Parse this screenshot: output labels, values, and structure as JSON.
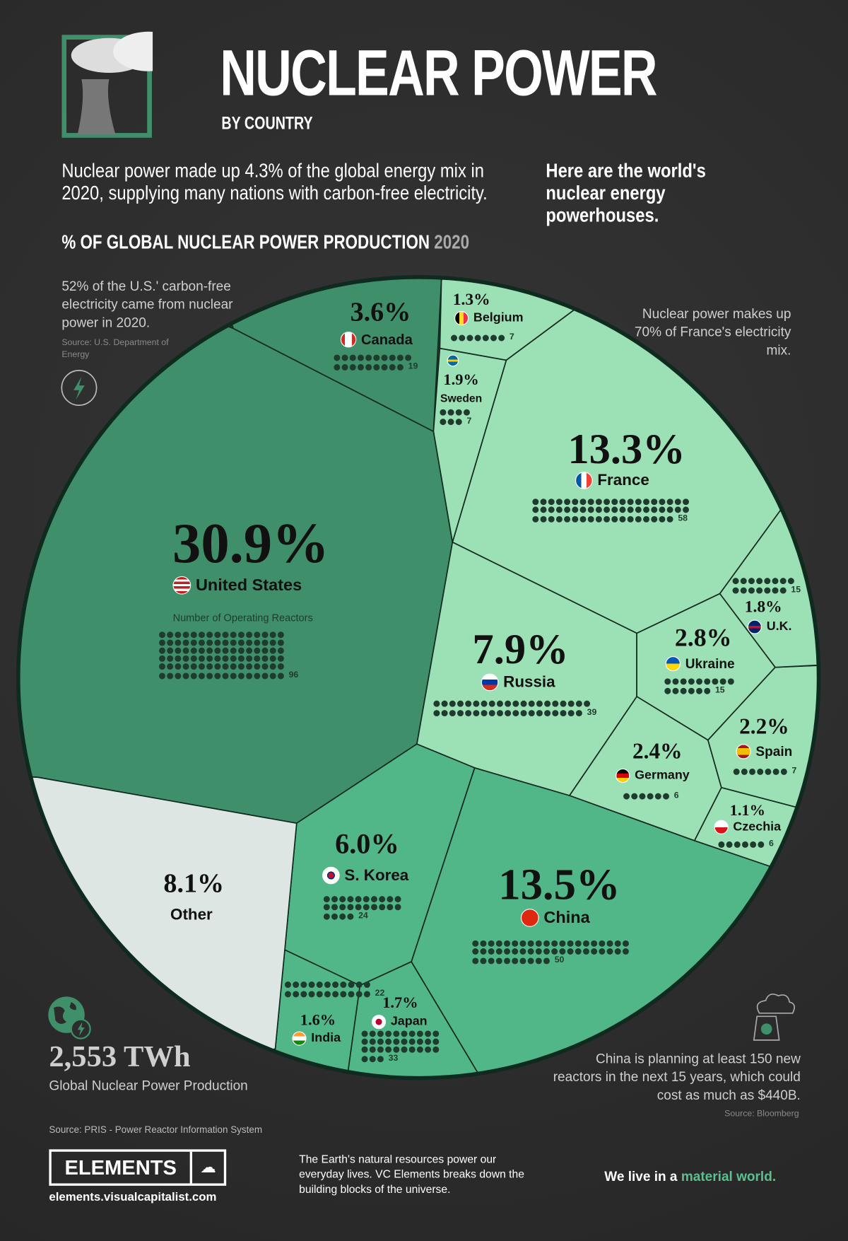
{
  "header": {
    "title": "NUCLEAR POWER",
    "subtitle": "BY COUNTRY",
    "intro_left": "Nuclear power made up 4.3% of the global energy mix in 2020, supplying many nations with carbon-free electricity.",
    "intro_right": "Here are the world's nuclear energy powerhouses.",
    "chart_heading": "% OF GLOBAL NUCLEAR POWER PRODUCTION",
    "chart_year": "2020"
  },
  "notes": {
    "us_note": "52% of the U.S.' carbon-free electricity came from nuclear power in 2020.",
    "us_source": "Source: U.S. Department of Energy",
    "france_note": "Nuclear power makes up 70% of France's electricity mix.",
    "china_note": "China is planning at least 150 new reactors in the next 15 years, which could cost as much as $440B.",
    "china_source": "Source: Bloomberg",
    "total_value": "2,553 TWh",
    "total_label": "Global Nuclear Power Production",
    "reactors_legend": "Number of Operating Reactors"
  },
  "footer": {
    "source": "Source: PRIS - Power Reactor Information System",
    "logo": "ELEMENTS",
    "url": "elements.visualcapitalist.com",
    "blurb": "The Earth's natural resources power our everyday lives. VC Elements breaks down the building blocks of the universe.",
    "tagline_a": "We live in a ",
    "tagline_b": "material world."
  },
  "colors": {
    "dark_green": "#3f8f6a",
    "mid_green": "#52b788",
    "light_green": "#9ce0b5",
    "other": "#dde6e2",
    "border": "#0f2a1f",
    "accent": "#5bc08e"
  },
  "chart_data": {
    "type": "voronoi",
    "title": "% OF GLOBAL NUCLEAR POWER PRODUCTION 2020",
    "unit": "%",
    "series": [
      {
        "name": "United States",
        "pct": "30.9%",
        "value": 30.9,
        "reactors": 96
      },
      {
        "name": "China",
        "pct": "13.5%",
        "value": 13.5,
        "reactors": 50
      },
      {
        "name": "France",
        "pct": "13.3%",
        "value": 13.3,
        "reactors": 58
      },
      {
        "name": "Russia",
        "pct": "7.9%",
        "value": 7.9,
        "reactors": 39
      },
      {
        "name": "S. Korea",
        "pct": "6.0%",
        "value": 6.0,
        "reactors": 24
      },
      {
        "name": "Canada",
        "pct": "3.6%",
        "value": 3.6,
        "reactors": 19
      },
      {
        "name": "Ukraine",
        "pct": "2.8%",
        "value": 2.8,
        "reactors": 15
      },
      {
        "name": "Germany",
        "pct": "2.4%",
        "value": 2.4,
        "reactors": 6
      },
      {
        "name": "Spain",
        "pct": "2.2%",
        "value": 2.2,
        "reactors": 7
      },
      {
        "name": "Sweden",
        "pct": "1.9%",
        "value": 1.9,
        "reactors": 7
      },
      {
        "name": "U.K.",
        "pct": "1.8%",
        "value": 1.8,
        "reactors": 15
      },
      {
        "name": "Japan",
        "pct": "1.7%",
        "value": 1.7,
        "reactors": 33
      },
      {
        "name": "India",
        "pct": "1.6%",
        "value": 1.6,
        "reactors": 22
      },
      {
        "name": "Belgium",
        "pct": "1.3%",
        "value": 1.3,
        "reactors": 7
      },
      {
        "name": "Czechia",
        "pct": "1.1%",
        "value": 1.1,
        "reactors": 6
      },
      {
        "name": "Other",
        "pct": "8.1%",
        "value": 8.1,
        "reactors": null
      }
    ]
  }
}
